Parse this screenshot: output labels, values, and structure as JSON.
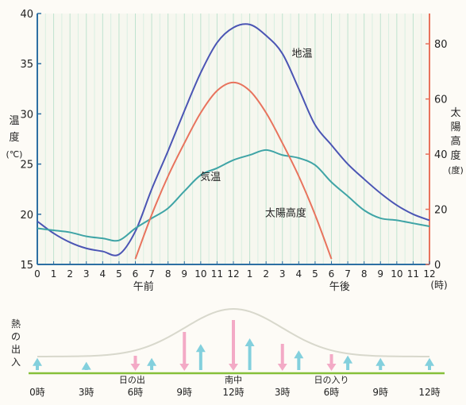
{
  "chart_data": [
    {
      "type": "line",
      "x_ticks": [
        "0",
        "1",
        "2",
        "3",
        "4",
        "5",
        "6",
        "7",
        "8",
        "9",
        "10",
        "11",
        "12",
        "1",
        "2",
        "3",
        "4",
        "5",
        "6",
        "7",
        "8",
        "9",
        "10",
        "11",
        "12"
      ],
      "x_unit": "(時)",
      "period_labels": {
        "morning": "午前",
        "afternoon": "午後"
      },
      "y_left": {
        "label_chars": [
          "温",
          "度",
          "(℃)"
        ],
        "ticks": [
          15,
          20,
          25,
          30,
          35,
          40
        ],
        "range": [
          15,
          40
        ]
      },
      "y_right": {
        "label_chars": [
          "太",
          "陽",
          "高",
          "度",
          "(度)"
        ],
        "ticks": [
          0,
          20,
          40,
          60,
          80
        ],
        "range": [
          0,
          91
        ]
      },
      "grid": true,
      "series": [
        {
          "name": "地温",
          "axis": "left",
          "color": "#4b55b4",
          "x": [
            0,
            1,
            2,
            3,
            4,
            5,
            6,
            7,
            8,
            9,
            10,
            11,
            12,
            13,
            14,
            15,
            16,
            17,
            18,
            19,
            20,
            21,
            22,
            23,
            24
          ],
          "y": [
            19.3,
            18.1,
            17.2,
            16.6,
            16.3,
            16.0,
            18.3,
            22.5,
            26.3,
            30.3,
            34.1,
            37.1,
            38.6,
            38.9,
            37.8,
            36.0,
            32.5,
            28.9,
            26.9,
            25.0,
            23.5,
            22.1,
            20.9,
            20.0,
            19.4
          ]
        },
        {
          "name": "気温",
          "axis": "left",
          "color": "#3fa4a6",
          "x": [
            0,
            1,
            2,
            3,
            4,
            5,
            6,
            7,
            8,
            9,
            10,
            11,
            12,
            13,
            14,
            15,
            16,
            17,
            18,
            19,
            20,
            21,
            22,
            23,
            24
          ],
          "y": [
            18.6,
            18.4,
            18.2,
            17.8,
            17.6,
            17.4,
            18.6,
            19.6,
            20.6,
            22.3,
            23.9,
            24.6,
            25.4,
            25.9,
            26.4,
            25.9,
            25.6,
            24.9,
            23.2,
            21.8,
            20.4,
            19.6,
            19.4,
            19.1,
            18.8
          ]
        },
        {
          "name": "太陽高度",
          "axis": "right",
          "color": "#e8735d",
          "x": [
            6,
            7,
            8,
            9,
            10,
            11,
            12,
            13,
            14,
            15,
            16,
            17,
            18
          ],
          "y": [
            2,
            18,
            32,
            44,
            55,
            63,
            66,
            63,
            55,
            44,
            32,
            18,
            2
          ]
        }
      ]
    },
    {
      "type": "arrows",
      "y_label_chars": [
        "熱",
        "の",
        "出",
        "入"
      ],
      "tick_labels": [
        "0時",
        "3時",
        "6時",
        "9時",
        "12時",
        "3時",
        "6時",
        "9時",
        "12時"
      ],
      "annotations": [
        "日の出",
        "南中",
        "日の入り"
      ],
      "colors": {
        "up": "#83d0dd",
        "down": "#f3aac6",
        "ground": "#86c03a",
        "curve": "#d8d8cc"
      },
      "hours": [
        0,
        3,
        6,
        7,
        9,
        10,
        12,
        13,
        15,
        16,
        18,
        19,
        21,
        24
      ],
      "in_arrow": [
        0,
        0,
        10,
        0,
        40,
        0,
        55,
        0,
        25,
        0,
        12,
        0,
        0,
        0
      ],
      "out_arrow": [
        14,
        8,
        0,
        14,
        0,
        36,
        0,
        45,
        0,
        26,
        0,
        18,
        14,
        14
      ]
    }
  ]
}
